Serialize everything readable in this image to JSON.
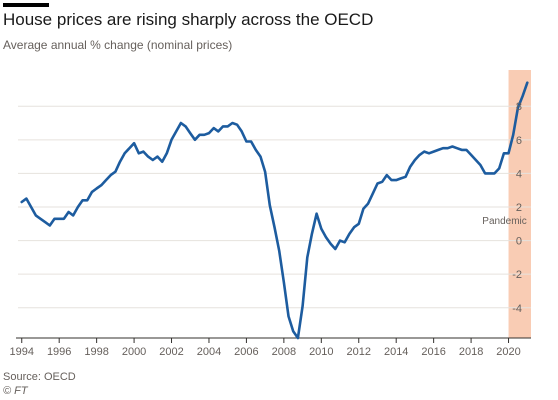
{
  "chart_data": {
    "type": "line",
    "title": "House prices are rising sharply across the OECD",
    "subtitle": "Average annual % change (nominal prices)",
    "xlabel": "",
    "ylabel": "",
    "xlim": [
      1993.8,
      2021.2
    ],
    "ylim": [
      -5.8,
      9.8
    ],
    "y_ticks": [
      8,
      6,
      4,
      2,
      0,
      -2,
      -4
    ],
    "x_ticks": [
      1994,
      1996,
      1998,
      2000,
      2002,
      2004,
      2006,
      2008,
      2010,
      2012,
      2014,
      2016,
      2018,
      2020
    ],
    "grid": true,
    "series": [
      {
        "color": "#1d5c9f",
        "x": [
          1994.0,
          1994.25,
          1994.5,
          1994.75,
          1995.0,
          1995.25,
          1995.5,
          1995.75,
          1996.0,
          1996.25,
          1996.5,
          1996.75,
          1997.0,
          1997.25,
          1997.5,
          1997.75,
          1998.0,
          1998.25,
          1998.5,
          1998.75,
          1999.0,
          1999.25,
          1999.5,
          1999.75,
          2000.0,
          2000.25,
          2000.5,
          2000.75,
          2001.0,
          2001.25,
          2001.5,
          2001.75,
          2002.0,
          2002.25,
          2002.5,
          2002.75,
          2003.0,
          2003.25,
          2003.5,
          2003.75,
          2004.0,
          2004.25,
          2004.5,
          2004.75,
          2005.0,
          2005.25,
          2005.5,
          2005.75,
          2006.0,
          2006.25,
          2006.5,
          2006.75,
          2007.0,
          2007.25,
          2007.5,
          2007.75,
          2008.0,
          2008.25,
          2008.5,
          2008.75,
          2009.0,
          2009.25,
          2009.5,
          2009.75,
          2010.0,
          2010.25,
          2010.5,
          2010.75,
          2011.0,
          2011.25,
          2011.5,
          2011.75,
          2012.0,
          2012.25,
          2012.5,
          2012.75,
          2013.0,
          2013.25,
          2013.5,
          2013.75,
          2014.0,
          2014.25,
          2014.5,
          2014.75,
          2015.0,
          2015.25,
          2015.5,
          2015.75,
          2016.0,
          2016.25,
          2016.5,
          2016.75,
          2017.0,
          2017.25,
          2017.5,
          2017.75,
          2018.0,
          2018.25,
          2018.5,
          2018.75,
          2019.0,
          2019.25,
          2019.5,
          2019.75,
          2020.0,
          2020.25,
          2020.5,
          2020.75,
          2021.0
        ],
        "y": [
          2.3,
          2.5,
          2.0,
          1.5,
          1.3,
          1.1,
          0.9,
          1.3,
          1.3,
          1.3,
          1.7,
          1.5,
          2.0,
          2.4,
          2.4,
          2.9,
          3.1,
          3.3,
          3.6,
          3.9,
          4.1,
          4.7,
          5.2,
          5.5,
          5.8,
          5.2,
          5.3,
          5.0,
          4.8,
          5.0,
          4.7,
          5.2,
          6.0,
          6.5,
          7.0,
          6.8,
          6.4,
          6.0,
          6.3,
          6.3,
          6.4,
          6.7,
          6.5,
          6.8,
          6.8,
          7.0,
          6.9,
          6.5,
          5.9,
          5.9,
          5.4,
          5.0,
          4.1,
          2.1,
          0.8,
          -0.6,
          -2.5,
          -4.5,
          -5.4,
          -5.8,
          -3.9,
          -1.0,
          0.4,
          1.6,
          0.7,
          0.2,
          -0.2,
          -0.5,
          0.0,
          -0.1,
          0.4,
          0.8,
          1.0,
          1.9,
          2.2,
          2.8,
          3.4,
          3.5,
          3.9,
          3.6,
          3.6,
          3.7,
          3.8,
          4.4,
          4.8,
          5.1,
          5.3,
          5.2,
          5.3,
          5.4,
          5.5,
          5.5,
          5.6,
          5.5,
          5.4,
          5.4,
          5.1,
          4.8,
          4.5,
          4.0,
          4.0,
          4.0,
          4.3,
          5.2,
          5.2,
          6.3,
          7.9,
          8.6,
          9.4
        ]
      }
    ],
    "annotations": [
      {
        "text": "Pandemic",
        "x_start": 2020.0,
        "x_end": 2021.2,
        "color": "#f9ccb4"
      }
    ],
    "source": "Source: OECD",
    "credit": "© FT"
  }
}
